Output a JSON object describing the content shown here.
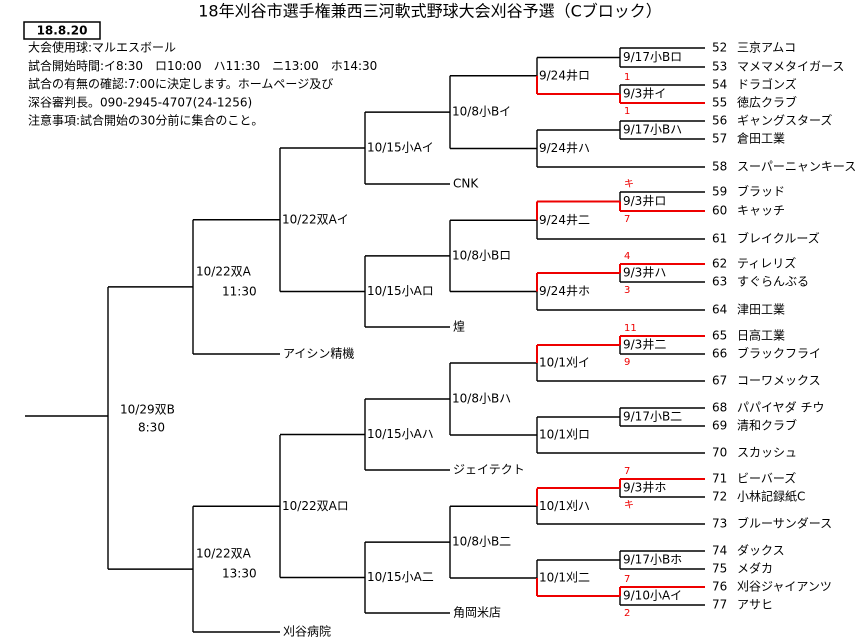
{
  "header": {
    "title": "18年刈谷市選手権兼西三河軟式野球大会刈谷予選（Cブロック）",
    "date": "18.8.20"
  },
  "notes": [
    "大会使用球:マルエスボール",
    "試合開始時間:イ8:30　ロ10:00　ハ11:30　ニ13:00　ホ14:30",
    "試合の有無の確認:7:00に決定します。ホームページ及び",
    "深谷審判長。090-2945-4707(24-1256)",
    "注意事項:試合開始の30分前に集合のこと。"
  ],
  "teams": [
    {
      "no": 52,
      "name": "三京アムコ"
    },
    {
      "no": 53,
      "name": "マメマメタイガース"
    },
    {
      "no": 54,
      "name": "ドラゴンズ"
    },
    {
      "no": 55,
      "name": "徳広クラブ"
    },
    {
      "no": 56,
      "name": "ギャングスターズ"
    },
    {
      "no": 57,
      "name": "倉田工業"
    },
    {
      "no": 58,
      "name": "スーパーニャンキース"
    },
    {
      "no": 59,
      "name": "ブラッド"
    },
    {
      "no": 60,
      "name": "キャッチ"
    },
    {
      "no": 61,
      "name": "ブレイクルーズ"
    },
    {
      "no": 62,
      "name": "ティレリズ"
    },
    {
      "no": 63,
      "name": "すぐらんぶる"
    },
    {
      "no": 64,
      "name": "津田工業"
    },
    {
      "no": 65,
      "name": "日高工業"
    },
    {
      "no": 66,
      "name": "ブラックフライ"
    },
    {
      "no": 67,
      "name": "コーワメックス"
    },
    {
      "no": 68,
      "name": "パパイヤダ チウ"
    },
    {
      "no": 69,
      "name": "清和クラブ"
    },
    {
      "no": 70,
      "name": "スカッシュ"
    },
    {
      "no": 71,
      "name": "ビーバーズ"
    },
    {
      "no": 72,
      "name": "小林記録紙C"
    },
    {
      "no": 73,
      "name": "ブルーサンダース"
    },
    {
      "no": 74,
      "name": "ダックス"
    },
    {
      "no": 75,
      "name": "メダカ"
    },
    {
      "no": 76,
      "name": "刈谷ジャイアンツ"
    },
    {
      "no": 77,
      "name": "アサヒ"
    }
  ],
  "round1": [
    {
      "label": "9/17小Bロ"
    },
    {
      "label": "9/3井イ",
      "scores": [
        1,
        1
      ],
      "winner": 1
    },
    {
      "label": "9/17小Bハ"
    },
    {
      "label": "9/3井ロ",
      "scores": [
        "キ",
        7
      ],
      "winner": 1
    },
    {
      "label": "9/3井ハ",
      "scores": [
        4,
        3
      ],
      "winner": 0
    },
    {
      "label": "9/3井二",
      "scores": [
        11,
        9
      ],
      "winner": 0
    },
    {
      "label": "9/17小B二"
    },
    {
      "label": "9/3井ホ",
      "scores": [
        7,
        "キ"
      ],
      "winner": 0
    },
    {
      "label": "9/17小Bホ"
    },
    {
      "label": "9/10小Aイ",
      "scores": [
        7,
        2
      ],
      "winner": 0
    }
  ],
  "round2": [
    "9/24井ロ",
    "9/24井ハ",
    "9/24井二",
    "9/24井ホ",
    "10/1刈イ",
    "10/1刈ロ",
    "10/1刈ハ",
    "10/1刈二"
  ],
  "round3": [
    "10/8小Bイ",
    "10/8小Bロ",
    "10/8小Bハ",
    "10/8小B二"
  ],
  "round4": [
    "10/15小Aイ",
    "10/15小Aロ",
    "10/15小Aハ",
    "10/15小A二"
  ],
  "round5": [
    "10/22双Aイ",
    "10/22双Aロ"
  ],
  "round6": [
    {
      "label": "10/22双A",
      "time": "11:30"
    },
    {
      "label": "10/22双A",
      "time": "13:30"
    }
  ],
  "final": {
    "label": "10/29双B",
    "time": "8:30"
  },
  "seeds": [
    "CNK",
    "煌",
    "ジェイテクト",
    "角岡米店",
    "アイシン精機",
    "刈谷病院"
  ]
}
